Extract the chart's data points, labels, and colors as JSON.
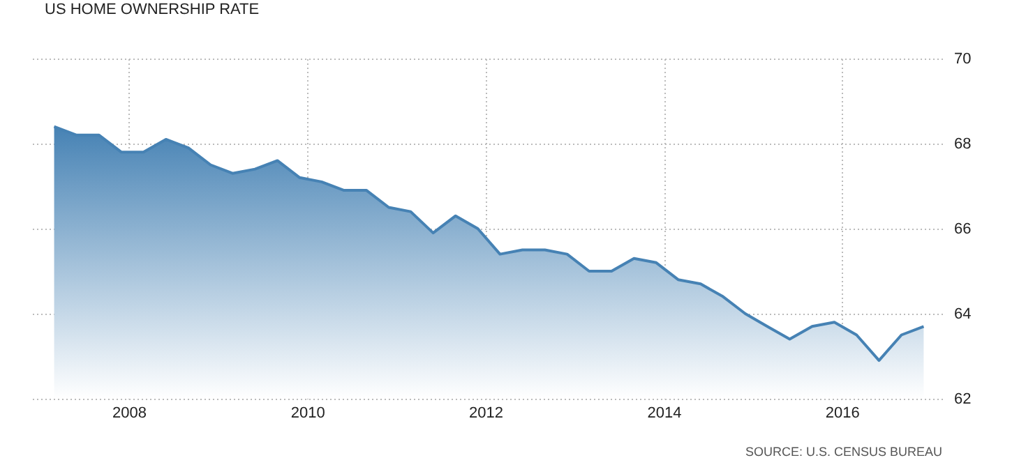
{
  "chart_data": {
    "type": "area",
    "title": "US HOME OWNERSHIP RATE",
    "x": [
      "2007-03",
      "2007-06",
      "2007-09",
      "2007-12",
      "2008-03",
      "2008-06",
      "2008-09",
      "2008-12",
      "2009-03",
      "2009-06",
      "2009-09",
      "2009-12",
      "2010-03",
      "2010-06",
      "2010-09",
      "2010-12",
      "2011-03",
      "2011-06",
      "2011-09",
      "2011-12",
      "2012-03",
      "2012-06",
      "2012-09",
      "2012-12",
      "2013-03",
      "2013-06",
      "2013-09",
      "2013-12",
      "2014-03",
      "2014-06",
      "2014-09",
      "2014-12",
      "2015-03",
      "2015-06",
      "2015-09",
      "2015-12",
      "2016-03",
      "2016-06",
      "2016-09",
      "2016-12"
    ],
    "series": [
      {
        "color": "#4682b4",
        "values": [
          68.4,
          68.2,
          68.2,
          67.8,
          67.8,
          68.1,
          67.9,
          67.5,
          67.3,
          67.4,
          67.6,
          67.2,
          67.1,
          66.9,
          66.9,
          66.5,
          66.4,
          65.9,
          66.3,
          66.0,
          65.4,
          65.5,
          65.5,
          65.4,
          65.0,
          65.0,
          65.3,
          65.2,
          64.8,
          64.7,
          64.4,
          64.0,
          63.7,
          63.4,
          63.7,
          63.8,
          63.5,
          62.9,
          63.5,
          63.7
        ]
      }
    ],
    "xlim": [
      "2006-11-25",
      "2017-02-15"
    ],
    "xticks": [
      "2008",
      "2010",
      "2012",
      "2014",
      "2016"
    ],
    "ylim": [
      62,
      70
    ],
    "yticks": [
      62,
      64,
      66,
      68,
      70
    ],
    "grid": true,
    "annotations": [
      "SOURCE: U.S. CENSUS BUREAU"
    ]
  }
}
